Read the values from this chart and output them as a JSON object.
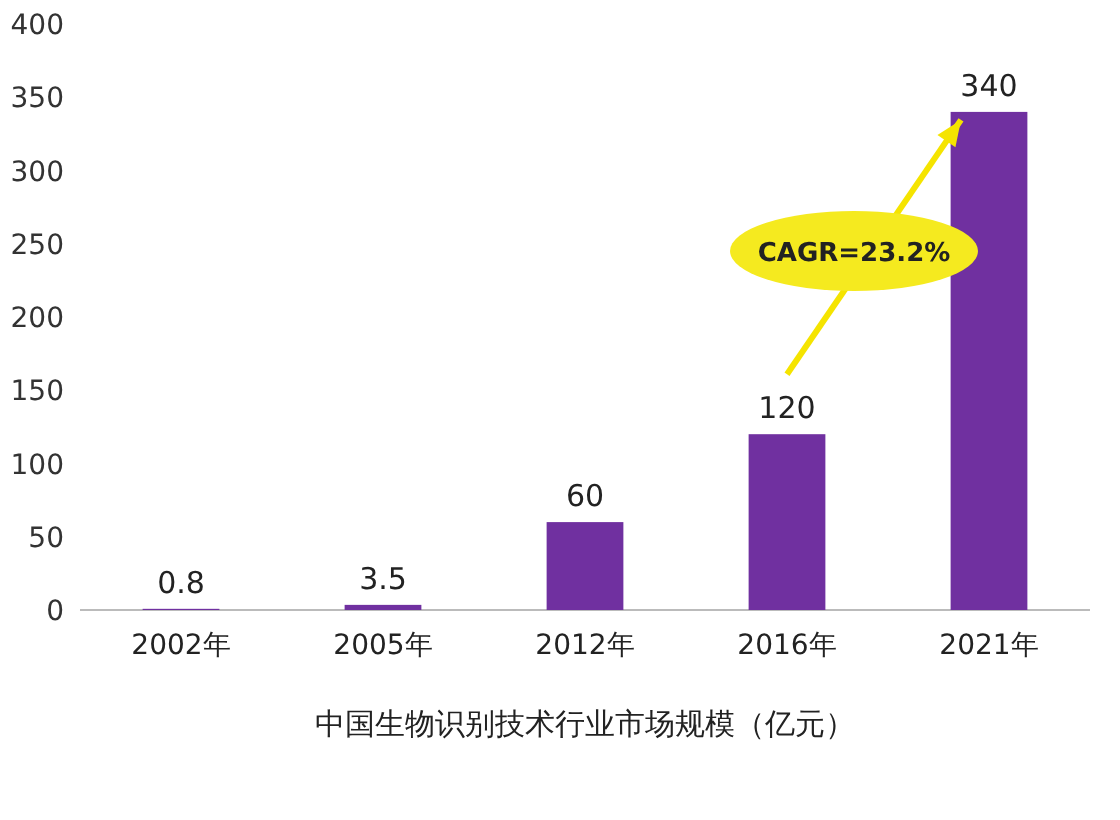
{
  "chart_data": {
    "type": "bar",
    "xlabel": "中国生物识别技术行业市场规模（亿元）",
    "categories": [
      "2002年",
      "2005年",
      "2012年",
      "2016年",
      "2021年"
    ],
    "values": [
      0.8,
      3.5,
      60,
      120,
      340
    ],
    "color": "#7030a0",
    "ylim": [
      0,
      400
    ],
    "yticks": [
      0,
      50,
      100,
      150,
      200,
      250,
      300,
      350,
      400
    ],
    "data_labels": true,
    "grid": false,
    "annotations": [
      "CAGR=23.2%"
    ]
  }
}
